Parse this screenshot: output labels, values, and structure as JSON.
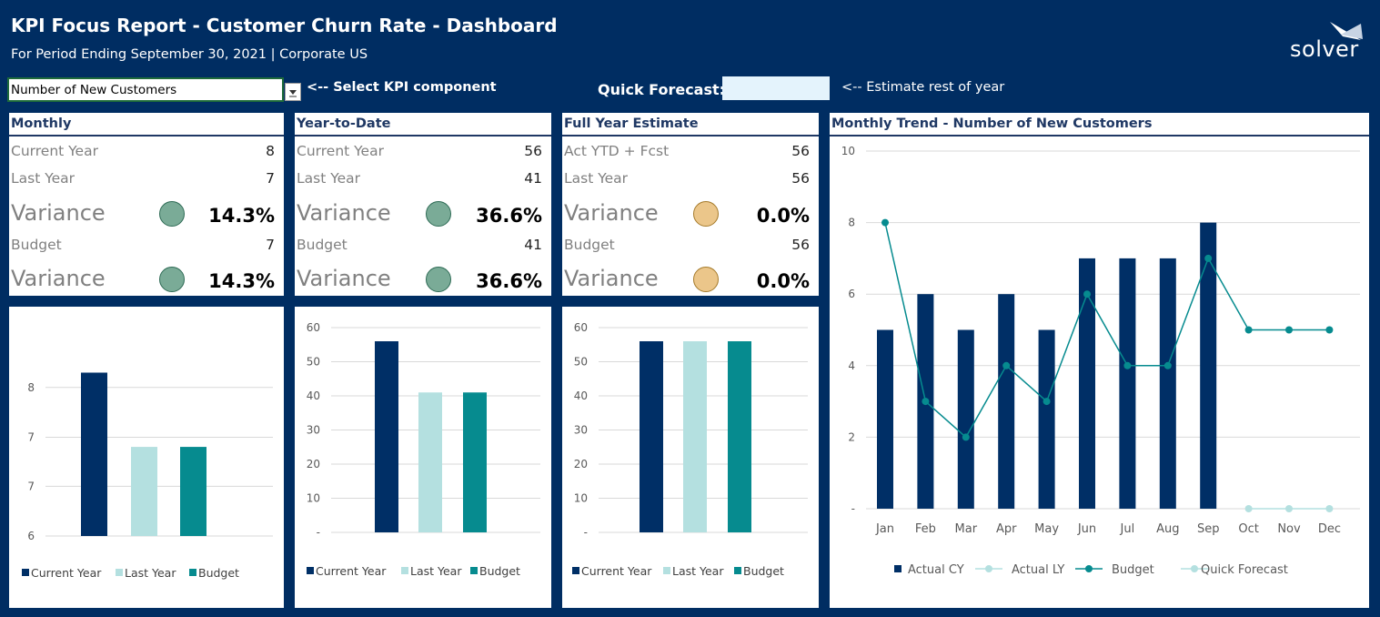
{
  "header": {
    "title": "KPI Focus Report - Customer Churn Rate - Dashboard",
    "subtitle": "For Period Ending September 30, 2021  |  Corporate US",
    "logo_text": "solver"
  },
  "controls": {
    "kpi_selected": "Number of New Customers",
    "kpi_hint": "<-- Select KPI component",
    "quick_forecast_label": "Quick Forecast:",
    "quick_forecast_value": "",
    "quick_forecast_hint": "<-- Estimate rest of year"
  },
  "colors": {
    "background": "#002d62",
    "actual": "#002f66",
    "last_year": "#b4e0e0",
    "budget": "#068b8f",
    "status_green": "#7aab97",
    "status_amber": "#ebc68a"
  },
  "panels": {
    "monthly": {
      "title": "Monthly",
      "rows": [
        {
          "label": "Current Year",
          "value": "8"
        },
        {
          "label": "Last Year",
          "value": "7"
        },
        {
          "label": "Variance",
          "value": "14.3%",
          "status": "green"
        },
        {
          "label": "Budget",
          "value": "7"
        },
        {
          "label": "Variance",
          "value": "14.3%",
          "status": "green"
        }
      ]
    },
    "ytd": {
      "title": "Year-to-Date",
      "rows": [
        {
          "label": "Current Year",
          "value": "56"
        },
        {
          "label": "Last Year",
          "value": "41"
        },
        {
          "label": "Variance",
          "value": "36.6%",
          "status": "green"
        },
        {
          "label": "Budget",
          "value": "41"
        },
        {
          "label": "Variance",
          "value": "36.6%",
          "status": "green"
        }
      ]
    },
    "full_year": {
      "title": "Full Year Estimate",
      "rows": [
        {
          "label": "Act YTD + Fcst",
          "value": "56"
        },
        {
          "label": "Last Year",
          "value": "56"
        },
        {
          "label": "Variance",
          "value": "0.0%",
          "status": "amber"
        },
        {
          "label": "Budget",
          "value": "56"
        },
        {
          "label": "Variance",
          "value": "0.0%",
          "status": "amber"
        }
      ]
    },
    "trend": {
      "title": "Monthly Trend - Number of New Customers"
    }
  },
  "chart_data": [
    {
      "type": "bar",
      "categories": [
        "Current Year",
        "Last Year",
        "Budget"
      ],
      "values": [
        8.2,
        7.2,
        7.2
      ],
      "ylim": [
        6,
        8.5
      ],
      "yticks": [
        6,
        6.67,
        7.33,
        8
      ],
      "ytick_labels": [
        "6",
        "7",
        "7",
        "8"
      ],
      "grid": true,
      "legend": "bottom",
      "legend_labels": [
        "Current Year",
        "Last Year",
        "Budget"
      ]
    },
    {
      "type": "bar",
      "categories": [
        "Current Year",
        "Last Year",
        "Budget"
      ],
      "values": [
        56,
        41,
        41
      ],
      "ylim": [
        0,
        60
      ],
      "yticks": [
        0,
        10,
        20,
        30,
        40,
        50,
        60
      ],
      "ytick_labels": [
        "-",
        "10",
        "20",
        "30",
        "40",
        "50",
        "60"
      ],
      "grid": true,
      "legend": "bottom",
      "legend_labels": [
        "Current Year",
        "Last Year",
        "Budget"
      ]
    },
    {
      "type": "bar",
      "categories": [
        "Current Year",
        "Last Year",
        "Budget"
      ],
      "values": [
        56,
        56,
        56
      ],
      "ylim": [
        0,
        60
      ],
      "yticks": [
        0,
        10,
        20,
        30,
        40,
        50,
        60
      ],
      "ytick_labels": [
        "-",
        "10",
        "20",
        "30",
        "40",
        "50",
        "60"
      ],
      "grid": true,
      "legend": "bottom",
      "legend_labels": [
        "Current Year",
        "Last Year",
        "Budget"
      ]
    },
    {
      "type": "bar",
      "categories": [
        "Jan",
        "Feb",
        "Mar",
        "Apr",
        "May",
        "Jun",
        "Jul",
        "Aug",
        "Sep",
        "Oct",
        "Nov",
        "Dec"
      ],
      "ylim": [
        0,
        10
      ],
      "yticks": [
        0,
        2,
        4,
        6,
        8,
        10
      ],
      "ytick_labels": [
        "-",
        "2",
        "4",
        "6",
        "8",
        "10"
      ],
      "grid": true,
      "legend": "bottom",
      "series": [
        {
          "name": "Actual CY",
          "kind": "bar",
          "values": [
            5,
            6,
            5,
            6,
            5,
            7,
            7,
            7,
            8,
            null,
            null,
            null
          ]
        },
        {
          "name": "Actual LY",
          "kind": "line",
          "values": [
            null,
            null,
            null,
            null,
            null,
            null,
            null,
            null,
            null,
            null,
            null,
            null
          ]
        },
        {
          "name": "Budget",
          "kind": "line",
          "values": [
            8,
            3,
            2,
            4,
            3,
            6,
            4,
            4,
            7,
            5,
            5,
            5
          ]
        },
        {
          "name": "Quick Forecast",
          "kind": "line",
          "values": [
            null,
            null,
            null,
            null,
            null,
            null,
            null,
            null,
            null,
            0,
            0,
            0
          ]
        }
      ]
    }
  ]
}
